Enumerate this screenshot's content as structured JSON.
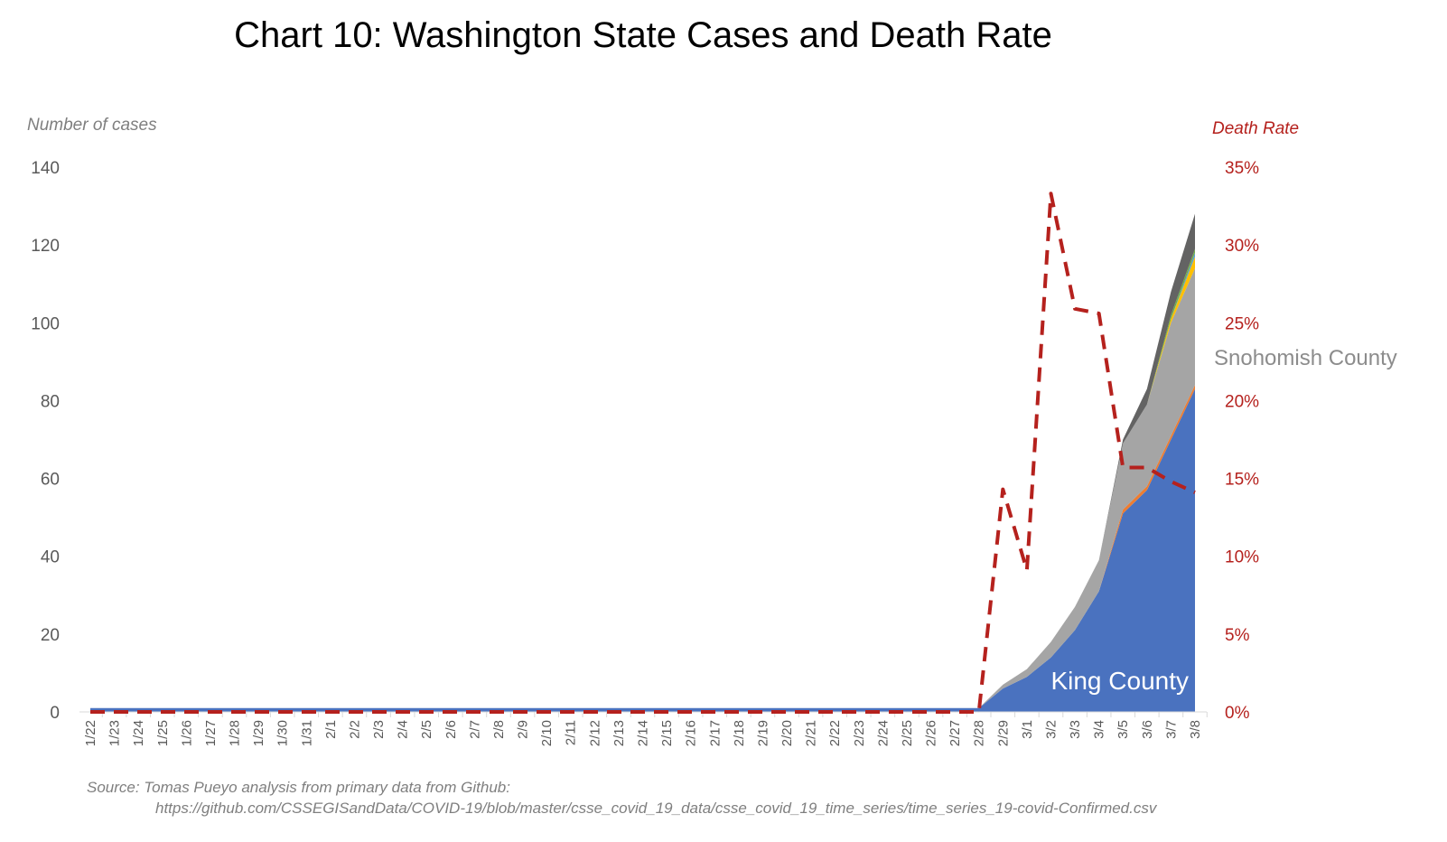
{
  "chart_data": {
    "type": "area",
    "title": "Chart 10: Washington State Cases and Death Rate",
    "ylabel": "Number of cases",
    "y2label": "Death Rate",
    "ylim": [
      0,
      140
    ],
    "y2lim": [
      0,
      35
    ],
    "yticks": [
      "0",
      "20",
      "40",
      "60",
      "80",
      "100",
      "120",
      "140"
    ],
    "y2ticks": [
      "0%",
      "5%",
      "10%",
      "15%",
      "20%",
      "25%",
      "30%",
      "35%"
    ],
    "grid": false,
    "categories": [
      "1/22",
      "1/23",
      "1/24",
      "1/25",
      "1/26",
      "1/27",
      "1/28",
      "1/29",
      "1/30",
      "1/31",
      "2/1",
      "2/2",
      "2/3",
      "2/4",
      "2/5",
      "2/6",
      "2/7",
      "2/8",
      "2/9",
      "2/10",
      "2/11",
      "2/12",
      "2/13",
      "2/14",
      "2/15",
      "2/16",
      "2/17",
      "2/18",
      "2/19",
      "2/20",
      "2/21",
      "2/22",
      "2/23",
      "2/24",
      "2/25",
      "2/26",
      "2/27",
      "2/28",
      "2/29",
      "3/1",
      "3/2",
      "3/3",
      "3/4",
      "3/5",
      "3/6",
      "3/7",
      "3/8"
    ],
    "series": [
      {
        "name": "King County",
        "color": "#4a72bf",
        "values": [
          1,
          1,
          1,
          1,
          1,
          1,
          1,
          1,
          1,
          1,
          1,
          1,
          1,
          1,
          1,
          1,
          1,
          1,
          1,
          1,
          1,
          1,
          1,
          1,
          1,
          1,
          1,
          1,
          1,
          1,
          1,
          1,
          1,
          1,
          1,
          1,
          1,
          1,
          6,
          9,
          14,
          21,
          31,
          51,
          57,
          70,
          83
        ]
      },
      {
        "color": "#ed7d31",
        "values": [
          0,
          0,
          0,
          0,
          0,
          0,
          0,
          0,
          0,
          0,
          0,
          0,
          0,
          0,
          0,
          0,
          0,
          0,
          0,
          0,
          0,
          0,
          0,
          0,
          0,
          0,
          0,
          0,
          0,
          0,
          0,
          0,
          0,
          0,
          0,
          0,
          0,
          0,
          0,
          0,
          0,
          0,
          0,
          1,
          1,
          1,
          1
        ]
      },
      {
        "name": "Snohomish County",
        "color": "#a5a5a5",
        "values": [
          0,
          0,
          0,
          0,
          0,
          0,
          0,
          0,
          0,
          0,
          0,
          0,
          0,
          0,
          0,
          0,
          0,
          0,
          0,
          0,
          0,
          0,
          0,
          0,
          0,
          0,
          0,
          0,
          0,
          0,
          0,
          0,
          0,
          0,
          0,
          0,
          0,
          0,
          1,
          2,
          4,
          6,
          8,
          17,
          21,
          29,
          30
        ]
      },
      {
        "color": "#ffc000",
        "values": [
          0,
          0,
          0,
          0,
          0,
          0,
          0,
          0,
          0,
          0,
          0,
          0,
          0,
          0,
          0,
          0,
          0,
          0,
          0,
          0,
          0,
          0,
          0,
          0,
          0,
          0,
          0,
          0,
          0,
          0,
          0,
          0,
          0,
          0,
          0,
          0,
          0,
          0,
          0,
          0,
          0,
          0,
          0,
          0,
          0,
          1,
          3
        ]
      },
      {
        "color": "#5b9bd5",
        "values": [
          0,
          0,
          0,
          0,
          0,
          0,
          0,
          0,
          0,
          0,
          0,
          0,
          0,
          0,
          0,
          0,
          0,
          0,
          0,
          0,
          0,
          0,
          0,
          0,
          0,
          0,
          0,
          0,
          0,
          0,
          0,
          0,
          0,
          0,
          0,
          0,
          0,
          0,
          0,
          0,
          0,
          0,
          0,
          0,
          0,
          0,
          1
        ]
      },
      {
        "color": "#70ad47",
        "values": [
          0,
          0,
          0,
          0,
          0,
          0,
          0,
          0,
          0,
          0,
          0,
          0,
          0,
          0,
          0,
          0,
          0,
          0,
          0,
          0,
          0,
          0,
          0,
          0,
          0,
          0,
          0,
          0,
          0,
          0,
          0,
          0,
          0,
          0,
          0,
          0,
          0,
          0,
          0,
          0,
          0,
          0,
          0,
          0,
          0,
          1,
          1
        ]
      },
      {
        "color": "#636363",
        "values": [
          0,
          0,
          0,
          0,
          0,
          0,
          0,
          0,
          0,
          0,
          0,
          0,
          0,
          0,
          0,
          0,
          0,
          0,
          0,
          0,
          0,
          0,
          0,
          0,
          0,
          0,
          0,
          0,
          0,
          0,
          0,
          0,
          0,
          0,
          0,
          0,
          0,
          0,
          0,
          0,
          0,
          0,
          0,
          1,
          4,
          6,
          9
        ]
      }
    ],
    "death_rate": {
      "name": "Death Rate",
      "color": "#b5211d",
      "axis": "right",
      "style": "dashed",
      "values": [
        0,
        0,
        0,
        0,
        0,
        0,
        0,
        0,
        0,
        0,
        0,
        0,
        0,
        0,
        0,
        0,
        0,
        0,
        0,
        0,
        0,
        0,
        0,
        0,
        0,
        0,
        0,
        0,
        0,
        0,
        0,
        0,
        0,
        0,
        0,
        0,
        0,
        0,
        14.3,
        9.1,
        33.3,
        25.9,
        25.6,
        15.7,
        15.7,
        14.8,
        14.1
      ]
    },
    "annotations": [
      "King County",
      "Snohomish County"
    ],
    "source_line1": "Source: Tomas Pueyo analysis from primary data from Github:",
    "source_line2": "https://github.com/CSSEGISandData/COVID-19/blob/master/csse_covid_19_data/csse_covid_19_time_series/time_series_19-covid-Confirmed.csv"
  }
}
